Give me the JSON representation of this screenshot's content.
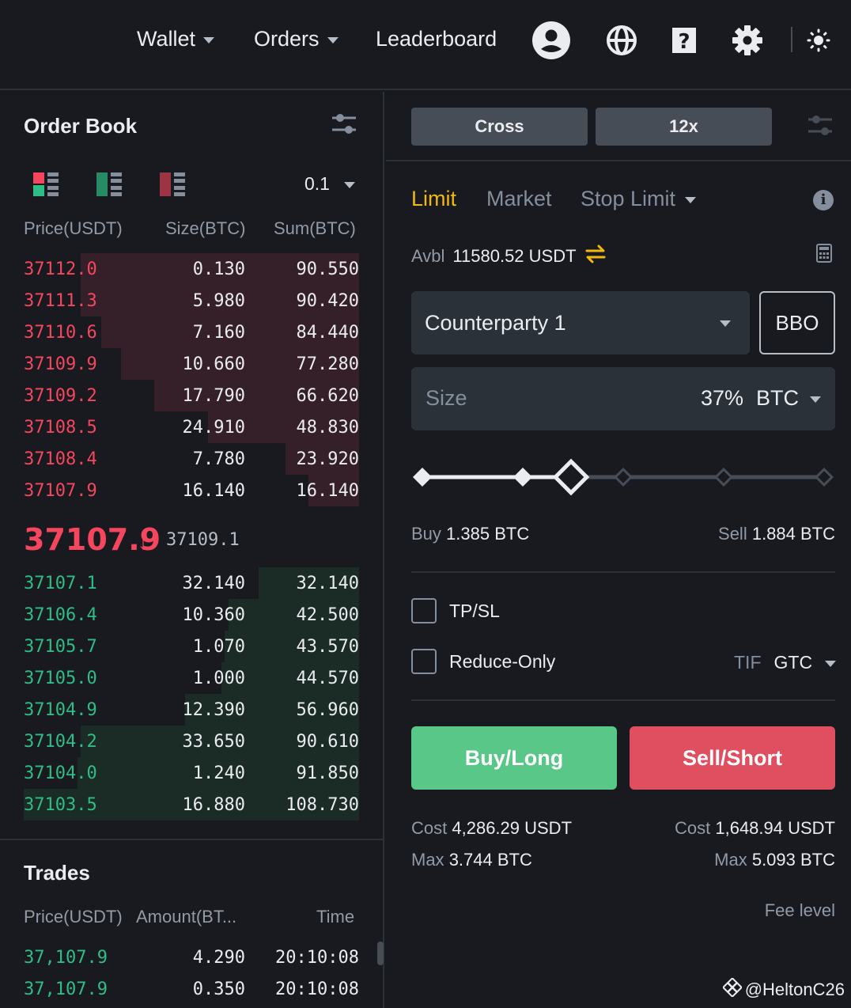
{
  "nav": {
    "wallet": "Wallet",
    "orders": "Orders",
    "leaderboard": "Leaderboard",
    "icons": [
      "user-avatar-icon",
      "globe-icon",
      "help-icon",
      "gear-icon",
      "theme-icon"
    ]
  },
  "order_book": {
    "title": "Order Book",
    "step": "0.1",
    "headers": {
      "price": "Price(USDT)",
      "size": "Size(BTC)",
      "sum": "Sum(BTC)"
    },
    "asks": [
      {
        "price": "37112.0",
        "size": "0.130",
        "sum": "90.550",
        "depth": 0.83
      },
      {
        "price": "37111.3",
        "size": "5.980",
        "sum": "90.420",
        "depth": 0.83
      },
      {
        "price": "37110.6",
        "size": "7.160",
        "sum": "84.440",
        "depth": 0.77
      },
      {
        "price": "37109.9",
        "size": "10.660",
        "sum": "77.280",
        "depth": 0.71
      },
      {
        "price": "37109.2",
        "size": "17.790",
        "sum": "66.620",
        "depth": 0.61
      },
      {
        "price": "37108.5",
        "size": "24.910",
        "sum": "48.830",
        "depth": 0.45
      },
      {
        "price": "37108.4",
        "size": "7.780",
        "sum": "23.920",
        "depth": 0.22
      },
      {
        "price": "37107.9",
        "size": "16.140",
        "sum": "16.140",
        "depth": 0.15
      }
    ],
    "last_price": "37107.9",
    "mark_price": "37109.1",
    "bids": [
      {
        "price": "37107.1",
        "size": "32.140",
        "sum": "32.140",
        "depth": 0.3
      },
      {
        "price": "37106.4",
        "size": "10.360",
        "sum": "42.500",
        "depth": 0.39
      },
      {
        "price": "37105.7",
        "size": "1.070",
        "sum": "43.570",
        "depth": 0.4
      },
      {
        "price": "37105.0",
        "size": "1.000",
        "sum": "44.570",
        "depth": 0.41
      },
      {
        "price": "37104.9",
        "size": "12.390",
        "sum": "56.960",
        "depth": 0.52
      },
      {
        "price": "37104.2",
        "size": "33.650",
        "sum": "90.610",
        "depth": 0.83
      },
      {
        "price": "37104.0",
        "size": "1.240",
        "sum": "91.850",
        "depth": 0.84
      },
      {
        "price": "37103.5",
        "size": "16.880",
        "sum": "108.730",
        "depth": 1.0
      }
    ]
  },
  "trades": {
    "title": "Trades",
    "headers": {
      "price": "Price(USDT)",
      "amount": "Amount(BT...",
      "time": "Time"
    },
    "rows": [
      {
        "price": "37,107.9",
        "amount": "4.290",
        "time": "20:10:08"
      },
      {
        "price": "37,107.9",
        "amount": "0.350",
        "time": "20:10:08"
      }
    ]
  },
  "order_form": {
    "margin_mode": "Cross",
    "leverage": "12x",
    "tabs": {
      "limit": "Limit",
      "market": "Market",
      "stop_limit": "Stop Limit"
    },
    "avbl_label": "Avbl",
    "avbl_value": "11580.52 USDT",
    "counterparty": "Counterparty 1",
    "bbo": "BBO",
    "size_placeholder": "Size",
    "size_percent": "37%",
    "size_unit": "BTC",
    "slider_fraction": 0.37,
    "buy_label": "Buy",
    "buy_value": "1.385 BTC",
    "sell_label": "Sell",
    "sell_value": "1.884 BTC",
    "tpsl": "TP/SL",
    "reduce_only": "Reduce-Only",
    "tif_label": "TIF",
    "tif_value": "GTC",
    "buy_button": "Buy/Long",
    "sell_button": "Sell/Short",
    "cost_label": "Cost",
    "buy_cost": "4,286.29 USDT",
    "sell_cost": "1,648.94 USDT",
    "max_label": "Max",
    "buy_max": "3.744 BTC",
    "sell_max": "5.093 BTC",
    "fee_level": "Fee level"
  },
  "watermark": "@HeltonC26",
  "colors": {
    "background": "#181a20",
    "accent": "#f0b90b",
    "buy": "#2ebd85",
    "sell": "#f6465d",
    "buy_button": "#58c787",
    "sell_button": "#e04f5f"
  }
}
